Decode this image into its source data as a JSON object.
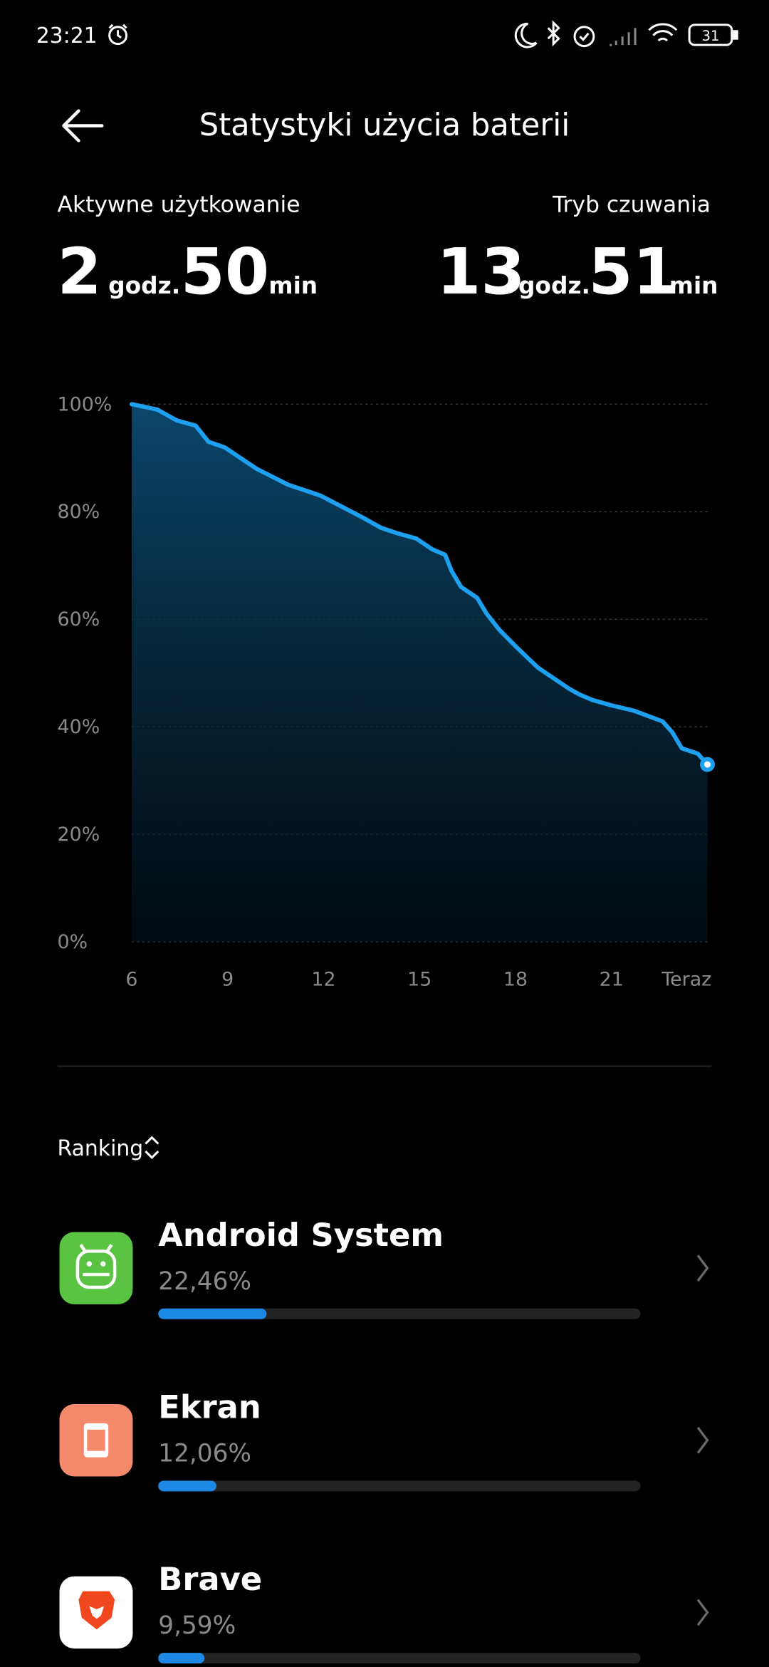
{
  "status_bar": {
    "time": "23:21",
    "battery": "31"
  },
  "header": {
    "title": "Statystyki użycia baterii"
  },
  "summary": {
    "active": {
      "label": "Aktywne użytkowanie",
      "hours": 2,
      "hours_unit": "godz.",
      "minutes": 50,
      "minutes_unit": "min"
    },
    "standby": {
      "label": "Tryb czuwania",
      "hours": 13,
      "hours_unit": "godz.",
      "minutes": 51,
      "minutes_unit": "min"
    }
  },
  "chart_data": {
    "type": "area",
    "color": "#1ea0f0",
    "grid": true,
    "x": [
      6,
      6.8,
      7.4,
      8,
      8.4,
      8.9,
      9.9,
      10.9,
      11.9,
      13.2,
      13.8,
      14.3,
      14.9,
      15.4,
      15.8,
      16,
      16.3,
      16.8,
      17.1,
      17.5,
      18,
      18.7,
      19.2,
      19.7,
      20,
      20.4,
      21,
      21.7,
      22.6,
      22.9,
      23.2,
      23.7,
      24
    ],
    "values": [
      100,
      99,
      97,
      96,
      93,
      92,
      88,
      85,
      83,
      79,
      77,
      76,
      75,
      73,
      72,
      69,
      66,
      64,
      61,
      58,
      55,
      51,
      49,
      47,
      46,
      45,
      44,
      43,
      41,
      39,
      36,
      35,
      33
    ],
    "xlim": [
      6,
      24
    ],
    "xticks": [
      6,
      9,
      12,
      15,
      18,
      21,
      {
        "value": 23.35,
        "label": "Teraz"
      }
    ],
    "ylim": [
      0,
      100
    ],
    "yticks": [
      {
        "value": 0,
        "label": "0%"
      },
      {
        "value": 20,
        "label": "20%"
      },
      {
        "value": 40,
        "label": "40%"
      },
      {
        "value": 60,
        "label": "60%"
      },
      {
        "value": 80,
        "label": "80%"
      },
      {
        "value": 100,
        "label": "100%"
      }
    ]
  },
  "ranking": {
    "label": "Ranking",
    "apps": [
      {
        "name": "Android System",
        "value": 22.46,
        "value_label": "22,46%"
      },
      {
        "name": "Ekran",
        "value": 12.06,
        "value_label": "12,06%"
      },
      {
        "name": "Brave",
        "value": 9.59,
        "value_label": "9,59%"
      }
    ]
  }
}
